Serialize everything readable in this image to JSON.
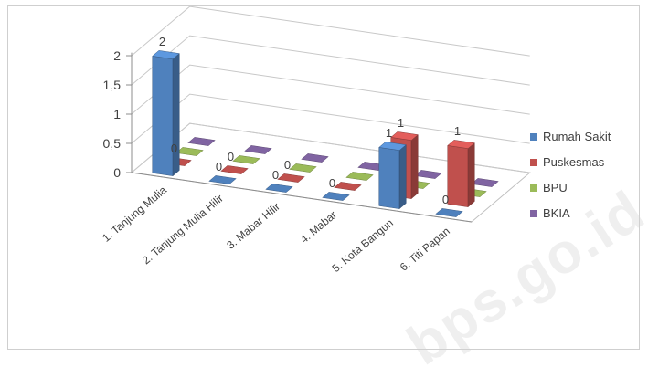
{
  "chart_data": {
    "type": "bar",
    "categories": [
      "1.   Tanjung Mulia",
      "2.   Tanjung Mulia Hilir",
      "3.   Mabar Hilir",
      "4.   Mabar",
      "5.   Kota Bangun",
      "6.   Titi Papan"
    ],
    "series": [
      {
        "name": "Rumah Sakit",
        "color": "#4f81bd",
        "values": [
          2,
          0,
          0,
          0,
          1,
          0
        ]
      },
      {
        "name": "Puskesmas",
        "color": "#c0504d",
        "values": [
          0,
          0,
          0,
          0,
          1,
          1
        ]
      },
      {
        "name": "BPU",
        "color": "#9bbb59",
        "values": [
          0,
          0,
          0,
          0,
          0,
          0
        ]
      },
      {
        "name": "BKIA",
        "color": "#8064a2",
        "values": [
          0,
          0,
          0,
          0,
          0,
          0
        ]
      }
    ],
    "data_labels": [
      {
        "series": 0,
        "category": 0,
        "text": "2"
      },
      {
        "series": 1,
        "category": 0,
        "text": "0"
      },
      {
        "series": 0,
        "category": 1,
        "text": "0"
      },
      {
        "series": 1,
        "category": 1,
        "text": "0"
      },
      {
        "series": 0,
        "category": 2,
        "text": "0"
      },
      {
        "series": 1,
        "category": 2,
        "text": "0"
      },
      {
        "series": 0,
        "category": 3,
        "text": "0"
      },
      {
        "series": 0,
        "category": 4,
        "text": "1"
      },
      {
        "series": 1,
        "category": 4,
        "text": "1"
      },
      {
        "series": 1,
        "category": 5,
        "text": "1"
      },
      {
        "series": 0,
        "category": 5,
        "text": "0"
      }
    ],
    "y_ticks": [
      "0",
      "0,5",
      "1",
      "1,5",
      "2"
    ],
    "ylim": [
      0,
      2
    ],
    "legend_position": "right",
    "grid": true,
    "watermark": "bps.go.id"
  }
}
